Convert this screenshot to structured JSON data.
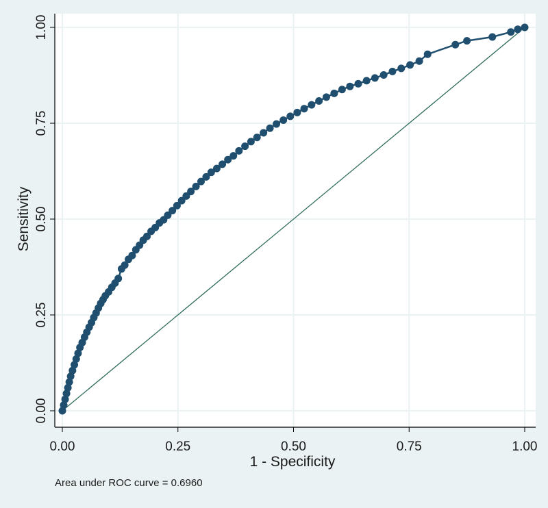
{
  "chart_data": {
    "type": "line",
    "xlabel": "1 - Specificity",
    "ylabel": "Sensitivity",
    "xlim": [
      0,
      1
    ],
    "ylim": [
      0,
      1
    ],
    "xticks": [
      "0.00",
      "0.25",
      "0.50",
      "0.75",
      "1.00"
    ],
    "yticks": [
      "0.00",
      "0.25",
      "0.50",
      "0.75",
      "1.00"
    ],
    "grid": true,
    "colors": {
      "curve": "#1f4e6e",
      "reference": "#2f6b5c",
      "grid": "#ffffff",
      "plot_bg": "#ffffff",
      "page_bg": "#eaf2f3"
    },
    "series": [
      {
        "markers": true,
        "x": [
          0.0,
          0.003,
          0.006,
          0.009,
          0.012,
          0.015,
          0.018,
          0.022,
          0.026,
          0.03,
          0.034,
          0.038,
          0.043,
          0.048,
          0.053,
          0.058,
          0.063,
          0.068,
          0.073,
          0.078,
          0.083,
          0.088,
          0.093,
          0.1,
          0.107,
          0.114,
          0.121,
          0.128,
          0.135,
          0.143,
          0.151,
          0.159,
          0.167,
          0.175,
          0.183,
          0.192,
          0.201,
          0.21,
          0.219,
          0.228,
          0.238,
          0.248,
          0.258,
          0.268,
          0.278,
          0.289,
          0.3,
          0.311,
          0.322,
          0.334,
          0.346,
          0.358,
          0.37,
          0.382,
          0.395,
          0.408,
          0.421,
          0.435,
          0.449,
          0.463,
          0.478,
          0.493,
          0.508,
          0.523,
          0.539,
          0.555,
          0.571,
          0.588,
          0.605,
          0.622,
          0.64,
          0.658,
          0.676,
          0.695,
          0.714,
          0.733,
          0.752,
          0.772,
          0.79,
          0.85,
          0.875,
          0.93,
          0.97,
          0.985,
          1.0
        ],
        "y": [
          0.0,
          0.015,
          0.03,
          0.045,
          0.06,
          0.075,
          0.09,
          0.105,
          0.12,
          0.135,
          0.15,
          0.165,
          0.178,
          0.192,
          0.205,
          0.218,
          0.23,
          0.243,
          0.255,
          0.268,
          0.28,
          0.29,
          0.3,
          0.31,
          0.322,
          0.333,
          0.345,
          0.37,
          0.38,
          0.395,
          0.405,
          0.42,
          0.432,
          0.445,
          0.455,
          0.468,
          0.478,
          0.49,
          0.498,
          0.51,
          0.522,
          0.535,
          0.548,
          0.56,
          0.572,
          0.585,
          0.598,
          0.61,
          0.622,
          0.632,
          0.643,
          0.655,
          0.665,
          0.678,
          0.69,
          0.702,
          0.713,
          0.725,
          0.737,
          0.748,
          0.758,
          0.768,
          0.778,
          0.788,
          0.798,
          0.808,
          0.818,
          0.828,
          0.838,
          0.846,
          0.853,
          0.861,
          0.868,
          0.876,
          0.885,
          0.893,
          0.902,
          0.912,
          0.93,
          0.955,
          0.965,
          0.975,
          0.988,
          0.995,
          1.0
        ]
      },
      {
        "x": [
          0,
          1
        ],
        "y": [
          0,
          1
        ]
      }
    ]
  },
  "note": "Area under ROC curve = 0.6960"
}
